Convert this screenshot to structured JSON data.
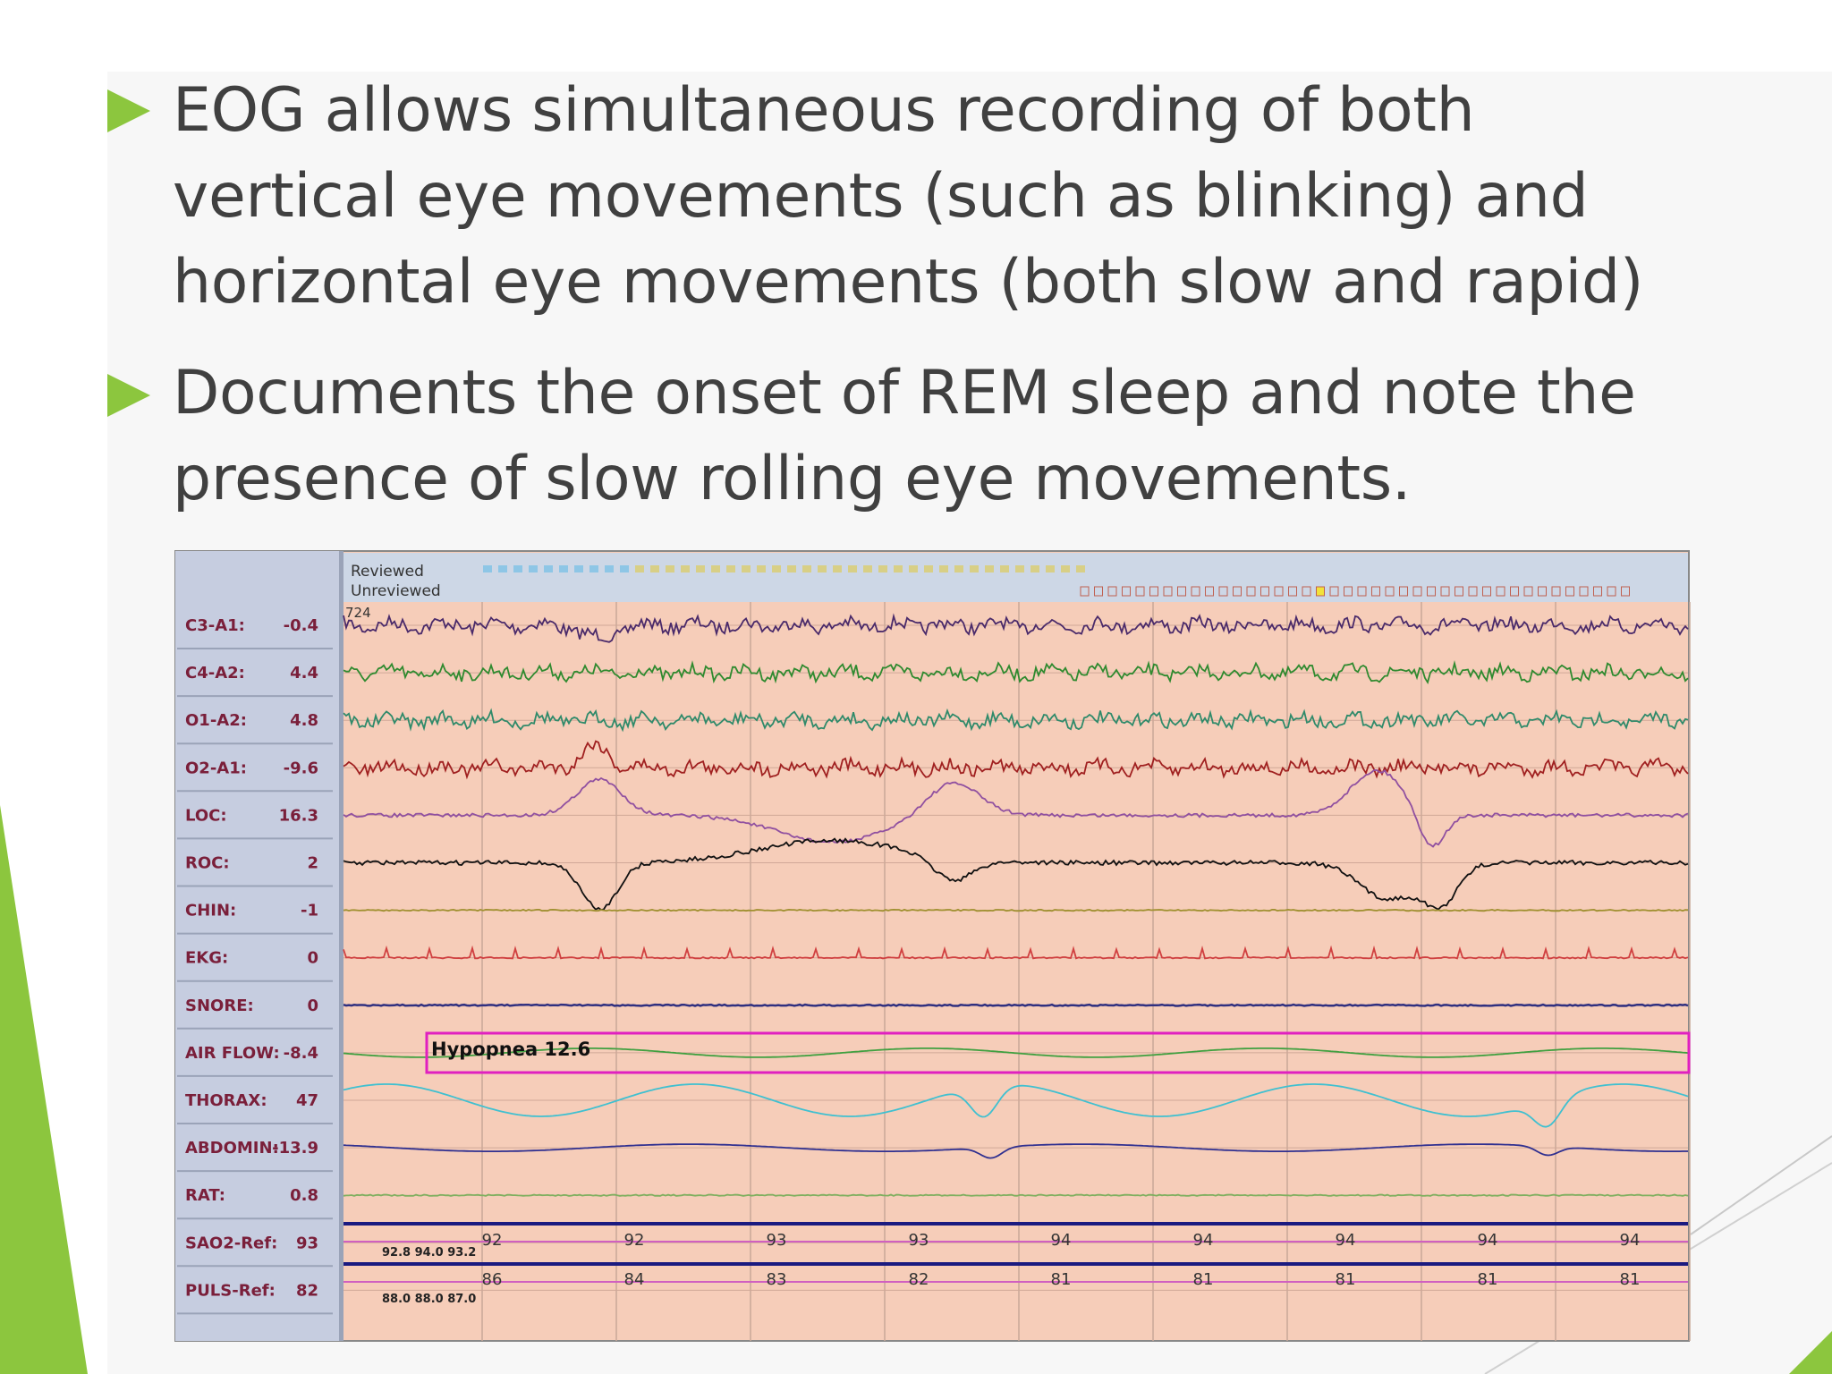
{
  "bullets": [
    {
      "lines": [
        "EOG allows simultaneous recording of both",
        "vertical eye movements (such as blinking) and",
        "horizontal eye movements (both slow and rapid)"
      ]
    },
    {
      "lines": [
        "Documents the onset of REM sleep and note the",
        "presence of slow rolling eye movements."
      ]
    }
  ],
  "recording": {
    "header": {
      "reviewed": "Reviewed",
      "unreviewed": "Unreviewed",
      "epoch": "724"
    },
    "channels": [
      {
        "name": "C3-A1:",
        "value": -0.4
      },
      {
        "name": "C4-A2:",
        "value": 4.4
      },
      {
        "name": "O1-A2:",
        "value": 4.8
      },
      {
        "name": "O2-A1:",
        "value": -9.6
      },
      {
        "name": "LOC:",
        "value": 16.3
      },
      {
        "name": "ROC:",
        "value": 2
      },
      {
        "name": "CHIN:",
        "value": -1
      },
      {
        "name": "EKG:",
        "value": 0
      },
      {
        "name": "SNORE:",
        "value": 0
      },
      {
        "name": "AIR FLOW:",
        "value": -8.4
      },
      {
        "name": "THORAX:",
        "value": 47
      },
      {
        "name": "ABDOMIN:",
        "value": -13.9
      },
      {
        "name": "RAT:",
        "value": 0.8
      },
      {
        "name": "SAO2-Ref:",
        "value": 93
      },
      {
        "name": "PULS-Ref:",
        "value": 82
      }
    ],
    "event": "Hypopnea 12.6",
    "sao2_values": [
      92,
      92,
      93,
      93,
      94,
      94,
      94,
      94,
      94
    ],
    "sao2_detail": "92.8 94.0 93.2",
    "pulse_values": [
      86,
      84,
      83,
      82,
      81,
      81,
      81,
      81,
      81
    ],
    "pulse_detail": "88.0 88.0 87.0"
  }
}
